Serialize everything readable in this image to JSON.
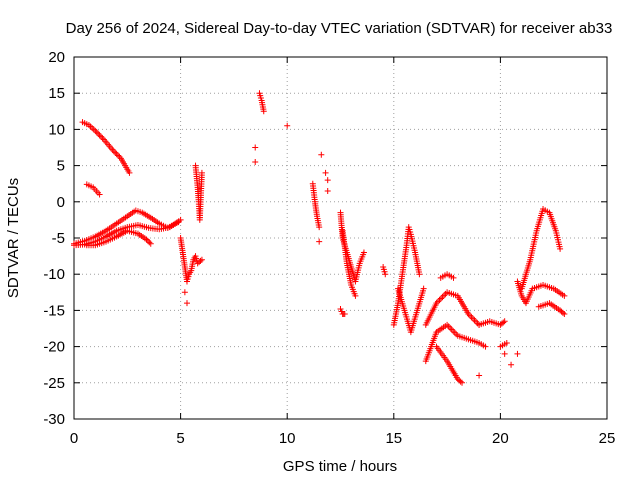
{
  "chart_data": {
    "type": "scatter",
    "title": "Day 256 of 2024, Sidereal Day-to-day VTEC variation (SDTVAR) for receiver ab33",
    "xlabel": "GPS time / hours",
    "ylabel": "SDTVAR / TECUs",
    "xlim": [
      0,
      25
    ],
    "ylim": [
      -30,
      20
    ],
    "xticks": [
      0,
      5,
      10,
      15,
      20,
      25
    ],
    "yticks": [
      -30,
      -25,
      -20,
      -15,
      -10,
      -5,
      0,
      5,
      10,
      15,
      20
    ],
    "grid": true,
    "marker": "+",
    "marker_color": "#ff0000",
    "segments": [
      [
        [
          0.0,
          -5.8
        ],
        [
          0.5,
          -5.4
        ],
        [
          1.0,
          -4.8
        ],
        [
          1.5,
          -4.0
        ],
        [
          2.0,
          -3.0
        ],
        [
          2.5,
          -2.0
        ],
        [
          2.9,
          -1.2
        ],
        [
          3.2,
          -1.5
        ],
        [
          3.6,
          -2.2
        ],
        [
          4.0,
          -3.0
        ],
        [
          4.4,
          -3.6
        ],
        [
          4.9,
          -2.8
        ]
      ],
      [
        [
          0.0,
          -6.0
        ],
        [
          0.5,
          -5.9
        ],
        [
          1.0,
          -5.5
        ],
        [
          1.5,
          -4.8
        ],
        [
          2.0,
          -4.0
        ],
        [
          2.5,
          -3.5
        ],
        [
          3.0,
          -3.2
        ],
        [
          3.5,
          -3.6
        ],
        [
          4.0,
          -3.8
        ],
        [
          4.5,
          -3.5
        ],
        [
          5.0,
          -2.5
        ]
      ],
      [
        [
          0.6,
          -6.0
        ],
        [
          1.0,
          -6.0
        ],
        [
          1.5,
          -5.5
        ],
        [
          2.0,
          -4.8
        ],
        [
          2.5,
          -4.0
        ],
        [
          3.0,
          -4.4
        ],
        [
          3.4,
          -5.2
        ],
        [
          3.6,
          -5.8
        ]
      ],
      [
        [
          0.4,
          11.0
        ],
        [
          0.7,
          10.6
        ],
        [
          1.0,
          9.8
        ],
        [
          1.4,
          8.6
        ],
        [
          1.8,
          7.2
        ],
        [
          2.2,
          6.0
        ],
        [
          2.6,
          4.0
        ]
      ],
      [
        [
          0.6,
          2.4
        ],
        [
          0.9,
          2.0
        ],
        [
          1.2,
          1.0
        ]
      ],
      [
        [
          5.0,
          -5.0
        ],
        [
          5.1,
          -7.0
        ],
        [
          5.2,
          -9.0
        ],
        [
          5.3,
          -11.0
        ],
        [
          5.4,
          -10.0
        ],
        [
          5.5,
          -9.5
        ],
        [
          5.6,
          -8.0
        ],
        [
          5.7,
          -7.5
        ],
        [
          5.8,
          -8.5
        ],
        [
          6.0,
          -8.0
        ]
      ],
      [
        [
          5.7,
          5.0
        ],
        [
          5.75,
          3.5
        ],
        [
          5.8,
          2.0
        ],
        [
          5.85,
          0.0
        ],
        [
          5.9,
          -2.5
        ],
        [
          6.0,
          4.0
        ]
      ],
      [
        [
          8.7,
          15.0
        ],
        [
          8.8,
          14.0
        ],
        [
          8.9,
          12.5
        ]
      ],
      [
        [
          11.2,
          2.5
        ],
        [
          11.3,
          0.0
        ],
        [
          11.4,
          -2.0
        ],
        [
          11.5,
          -3.5
        ]
      ],
      [
        [
          12.5,
          -1.5
        ],
        [
          12.6,
          -5.0
        ],
        [
          12.8,
          -7.0
        ],
        [
          13.0,
          -9.0
        ],
        [
          13.2,
          -11.0
        ],
        [
          13.4,
          -8.5
        ],
        [
          13.6,
          -7.0
        ]
      ],
      [
        [
          12.6,
          -4.0
        ],
        [
          12.8,
          -8.5
        ],
        [
          13.0,
          -11.5
        ],
        [
          13.2,
          -13.0
        ]
      ],
      [
        [
          12.5,
          -14.8
        ],
        [
          12.6,
          -15.5
        ],
        [
          12.7,
          -15.5
        ]
      ],
      [
        [
          14.5,
          -9.0
        ],
        [
          14.6,
          -10.0
        ]
      ],
      [
        [
          15.0,
          -17.0
        ],
        [
          15.2,
          -14.0
        ],
        [
          15.4,
          -10.0
        ],
        [
          15.6,
          -6.0
        ],
        [
          15.7,
          -3.5
        ],
        [
          15.8,
          -4.5
        ],
        [
          16.0,
          -7.0
        ],
        [
          16.2,
          -10.0
        ]
      ],
      [
        [
          15.2,
          -12.0
        ],
        [
          15.5,
          -15.0
        ],
        [
          15.8,
          -18.0
        ],
        [
          16.1,
          -15.0
        ],
        [
          16.4,
          -12.0
        ]
      ],
      [
        [
          16.5,
          -17.0
        ],
        [
          17.0,
          -14.0
        ],
        [
          17.5,
          -12.5
        ],
        [
          18.0,
          -13.0
        ],
        [
          18.5,
          -15.5
        ],
        [
          19.0,
          -17.0
        ]
      ],
      [
        [
          17.0,
          -20.0
        ],
        [
          17.5,
          -22.0
        ],
        [
          18.0,
          -24.5
        ],
        [
          18.2,
          -25.0
        ]
      ],
      [
        [
          16.5,
          -22.0
        ],
        [
          17.0,
          -18.0
        ],
        [
          17.5,
          -17.0
        ],
        [
          18.0,
          -18.5
        ],
        [
          18.5,
          -19.0
        ],
        [
          19.0,
          -19.5
        ],
        [
          19.3,
          -20.0
        ]
      ],
      [
        [
          17.2,
          -10.5
        ],
        [
          17.5,
          -10.0
        ],
        [
          17.8,
          -10.5
        ]
      ],
      [
        [
          19.0,
          -17.0
        ],
        [
          19.5,
          -16.5
        ],
        [
          20.0,
          -17.0
        ],
        [
          20.2,
          -16.5
        ]
      ],
      [
        [
          20.0,
          -20.0
        ],
        [
          20.3,
          -19.5
        ]
      ],
      [
        [
          20.8,
          -11.0
        ],
        [
          21.0,
          -13.0
        ],
        [
          21.2,
          -14.0
        ],
        [
          21.5,
          -12.0
        ],
        [
          22.0,
          -11.5
        ],
        [
          22.5,
          -12.0
        ],
        [
          23.0,
          -13.0
        ]
      ],
      [
        [
          21.0,
          -12.0
        ],
        [
          21.4,
          -8.0
        ],
        [
          21.7,
          -4.0
        ],
        [
          22.0,
          -1.0
        ],
        [
          22.3,
          -1.5
        ],
        [
          22.6,
          -4.0
        ],
        [
          22.8,
          -6.5
        ]
      ],
      [
        [
          21.8,
          -14.5
        ],
        [
          22.3,
          -14.0
        ],
        [
          22.8,
          -15.0
        ],
        [
          23.0,
          -15.5
        ]
      ]
    ],
    "points": [
      [
        5.3,
        -14.0
      ],
      [
        5.2,
        -12.5
      ],
      [
        8.5,
        7.5
      ],
      [
        8.5,
        5.5
      ],
      [
        10.0,
        10.5
      ],
      [
        11.5,
        -5.5
      ],
      [
        11.6,
        6.5
      ],
      [
        11.8,
        4.0
      ],
      [
        11.9,
        3.0
      ],
      [
        11.9,
        1.5
      ],
      [
        20.2,
        -21.0
      ],
      [
        20.5,
        -22.5
      ],
      [
        20.8,
        -21.0
      ],
      [
        19.0,
        -24.0
      ]
    ]
  }
}
